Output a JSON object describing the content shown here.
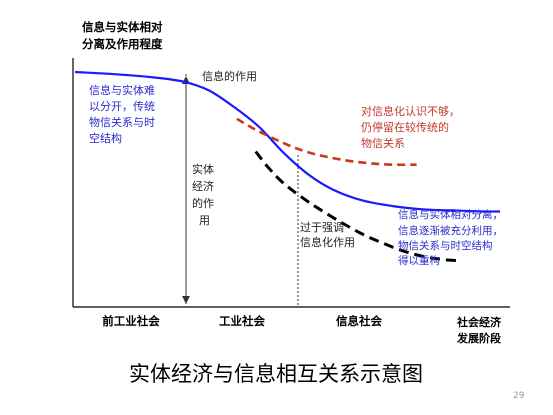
{
  "chart_data": {
    "type": "line",
    "title": "实体经济与信息相互关系示意图",
    "ylabel_lines": [
      "信息与实体相对",
      "分离及作用程度"
    ],
    "xlabel_lines": [
      "社会经济",
      "发展阶段"
    ],
    "stages": [
      "前工业社会",
      "工业社会",
      "信息社会"
    ],
    "stage_ranges": [
      [
        0,
        1.2
      ],
      [
        1.2,
        2.32
      ],
      [
        2.32,
        4.28
      ]
    ],
    "xlim": [
      0,
      4.28
    ],
    "ylim": [
      0,
      1
    ],
    "grid": false,
    "series": [
      {
        "key": "main",
        "color": "#1a1aff",
        "style": "solid",
        "x": [
          0,
          0.4,
          0.8,
          1.1,
          1.35,
          1.6,
          1.85,
          2.1,
          2.35,
          2.6,
          2.9,
          3.2,
          3.5,
          3.8,
          4.1,
          4.28
        ],
        "y": [
          1.0,
          0.99,
          0.975,
          0.955,
          0.915,
          0.84,
          0.75,
          0.63,
          0.53,
          0.46,
          0.41,
          0.385,
          0.37,
          0.365,
          0.36,
          0.36
        ]
      },
      {
        "key": "red",
        "color": "#c8381a",
        "style": "dashed",
        "x": [
          1.63,
          1.8,
          2.0,
          2.2,
          2.4,
          2.6,
          2.8,
          3.0,
          3.2,
          3.44
        ],
        "y": [
          0.785,
          0.74,
          0.695,
          0.655,
          0.625,
          0.605,
          0.59,
          0.58,
          0.575,
          0.575
        ]
      },
      {
        "key": "black",
        "color": "#000000",
        "style": "dashed",
        "x": [
          1.82,
          1.95,
          2.1,
          2.3,
          2.5,
          2.7,
          2.9,
          3.1,
          3.3,
          3.5,
          3.7,
          3.85
        ],
        "y": [
          0.635,
          0.56,
          0.49,
          0.42,
          0.36,
          0.305,
          0.255,
          0.215,
          0.18,
          0.155,
          0.14,
          0.135
        ]
      }
    ],
    "annotations": [
      {
        "key": "info_role",
        "lines": [
          "信息的作用"
        ],
        "color": "#222222"
      },
      {
        "key": "hard_separate",
        "lines": [
          "信息与实体难",
          "以分开，传统",
          "物信关系与时",
          "空结构"
        ],
        "color": "#2a2ad0"
      },
      {
        "key": "underestimate",
        "lines": [
          "对信息化认识不够，",
          "仍停留在较传统的",
          "物信关系"
        ],
        "color": "#c0392b"
      },
      {
        "key": "real_economy",
        "lines": [
          "实体",
          "经济",
          "的作",
          "用"
        ],
        "color": "#222222"
      },
      {
        "key": "overemphasis",
        "lines": [
          "过于强调",
          "信息化作用"
        ],
        "color": "#222222"
      },
      {
        "key": "separated",
        "lines": [
          "信息与实体相对分离，",
          "信息逐渐被充分利用，",
          "物信关系与时空结构",
          "得以重构"
        ],
        "color": "#2a2ad0"
      }
    ]
  },
  "page_number": "29"
}
